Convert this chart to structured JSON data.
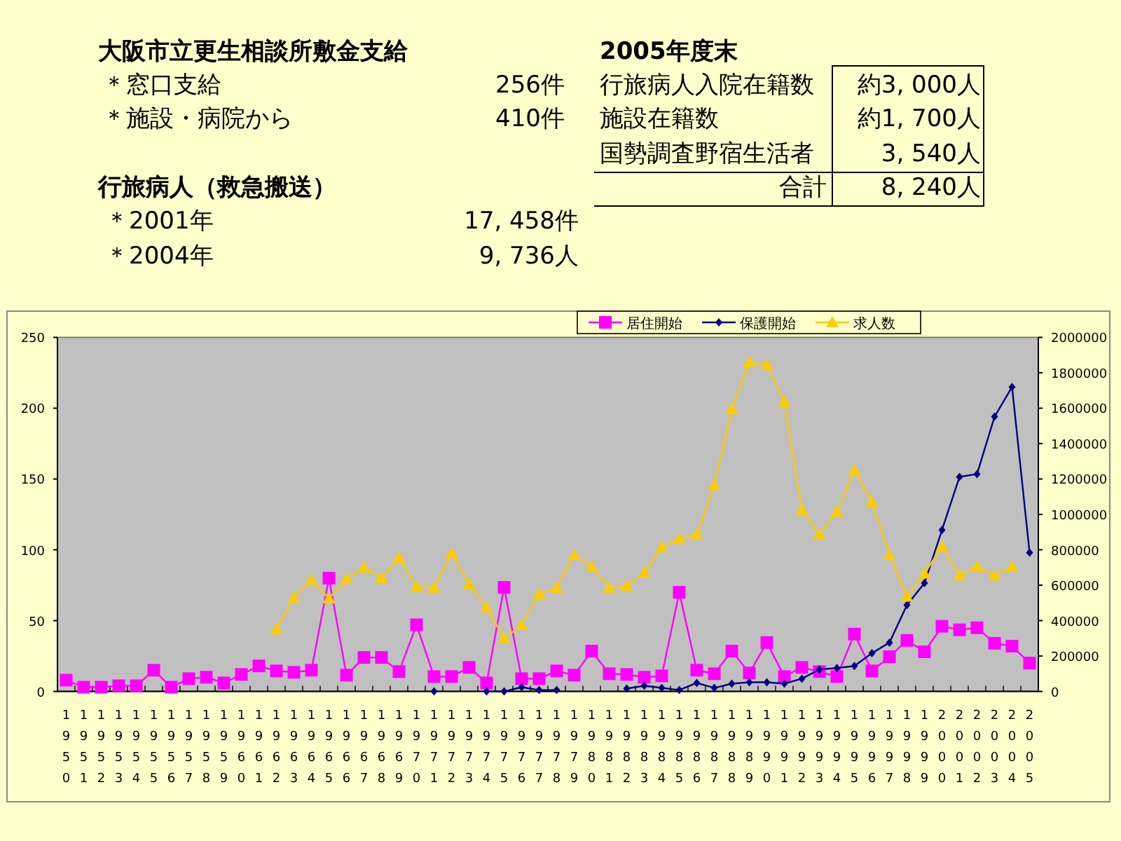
{
  "chart_data": [
    {
      "type": "other",
      "annotations": [
        "大阪市立更生相談所敷金支給",
        "＊窓口支給",
        "256件",
        "＊施設・病院から",
        "410件",
        "行旅病人（救急搬送）",
        "＊2001年",
        "17, 458件",
        "＊2004年",
        "9, 736人",
        "2005年度末",
        "行旅病人入院在籍数",
        "約3, 000人",
        "施設在籍数",
        "約1, 700人",
        "国勢調査野宿生活者",
        "3, 540人",
        "合計",
        "8, 240人"
      ]
    },
    {
      "type": "line",
      "categories": [
        "1950",
        "1951",
        "1952",
        "1953",
        "1954",
        "1955",
        "1956",
        "1957",
        "1958",
        "1959",
        "1960",
        "1961",
        "1962",
        "1963",
        "1964",
        "1965",
        "1966",
        "1967",
        "1968",
        "1969",
        "1970",
        "1971",
        "1972",
        "1973",
        "1974",
        "1975",
        "1976",
        "1977",
        "1978",
        "1979",
        "1980",
        "1981",
        "1982",
        "1983",
        "1984",
        "1985",
        "1986",
        "1987",
        "1988",
        "1989",
        "1990",
        "1991",
        "1992",
        "1993",
        "1994",
        "1995",
        "1996",
        "1997",
        "1998",
        "1999",
        "2000",
        "2001",
        "2002",
        "2003",
        "2004",
        "2005"
      ],
      "series": [
        {
          "name": "居住開始",
          "color": "#ff00ff",
          "marker": "square",
          "values": [
            8,
            3,
            3,
            4,
            4,
            15,
            3,
            9,
            10,
            6,
            12,
            18,
            14.5,
            13.5,
            15,
            80,
            11.5,
            24,
            24,
            14,
            47,
            10.5,
            10.5,
            17,
            6,
            73.5,
            9,
            9,
            14.5,
            11.5,
            28.5,
            12.5,
            12,
            10,
            11,
            70,
            15,
            12.5,
            28.5,
            13,
            34.5,
            10.5,
            17,
            14,
            10.5,
            40.5,
            14.5,
            24.5,
            36,
            28,
            46,
            43.5,
            45,
            34,
            32,
            20
          ]
        },
        {
          "name": "保護開始",
          "color": "#000080",
          "marker": "diamond",
          "values": [
            null,
            null,
            null,
            null,
            null,
            null,
            null,
            null,
            null,
            null,
            null,
            null,
            null,
            null,
            null,
            null,
            null,
            null,
            null,
            null,
            null,
            0,
            null,
            null,
            0,
            0,
            3,
            1,
            1,
            null,
            null,
            null,
            2,
            4,
            2.5,
            1,
            6,
            2.5,
            5.5,
            6.5,
            6.5,
            5.5,
            9,
            15.5,
            16.5,
            18,
            27,
            34.5,
            61,
            76.5,
            114,
            151.5,
            153.5,
            194,
            215,
            98
          ]
        },
        {
          "name": "求人数",
          "color": "#ffcc00",
          "marker": "triangle",
          "axis": "y2",
          "values": [
            null,
            null,
            null,
            null,
            null,
            null,
            null,
            null,
            null,
            null,
            null,
            null,
            350000,
            530000,
            630000,
            525000,
            635000,
            700000,
            640000,
            755000,
            590000,
            585000,
            780000,
            605000,
            475000,
            300000,
            375000,
            550000,
            585000,
            770000,
            705000,
            585000,
            595000,
            670000,
            815000,
            860000,
            885000,
            1165000,
            1595000,
            1860000,
            1845000,
            1635000,
            1025000,
            885000,
            1015000,
            1250000,
            1070000,
            770000,
            535000,
            665000,
            820000,
            655000,
            705000,
            655000,
            705000,
            null
          ]
        }
      ],
      "ylim": [
        0,
        250
      ],
      "yticks": [
        0,
        50,
        100,
        150,
        200,
        250
      ],
      "y2lim": [
        0,
        2000000
      ],
      "y2ticks": [
        0,
        200000,
        400000,
        600000,
        800000,
        1000000,
        1200000,
        1400000,
        1600000,
        1800000,
        2000000
      ],
      "legend": "top",
      "grid": false
    }
  ]
}
